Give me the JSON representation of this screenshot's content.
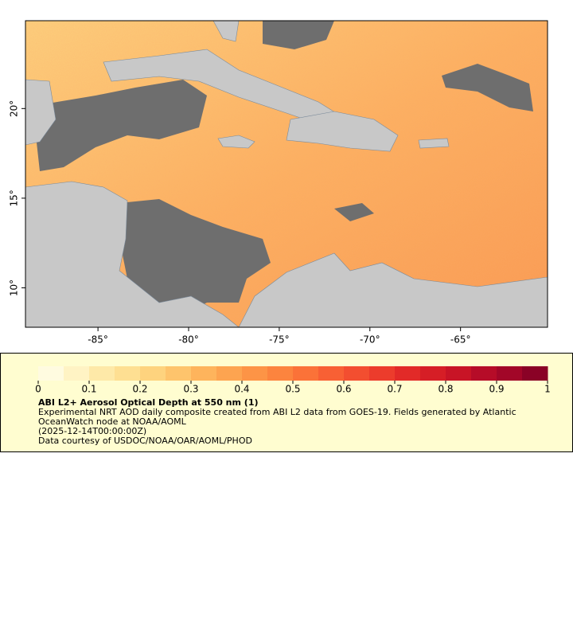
{
  "map": {
    "xlim": [
      -89,
      -60.2
    ],
    "ylim": [
      7.8,
      24.9
    ],
    "xticks": [
      {
        "value": -85,
        "label": "-85°"
      },
      {
        "value": -80,
        "label": "-80°"
      },
      {
        "value": -75,
        "label": "-75°"
      },
      {
        "value": -70,
        "label": "-70°"
      },
      {
        "value": -65,
        "label": "-65°"
      }
    ],
    "yticks": [
      {
        "value": 10,
        "label": "10°"
      },
      {
        "value": 15,
        "label": "15°"
      },
      {
        "value": 20,
        "label": "20°"
      }
    ]
  },
  "colorbar": {
    "range": [
      0,
      1
    ],
    "ticks": [
      0,
      0.1,
      0.2,
      0.3,
      0.4,
      0.5,
      0.6,
      0.7,
      0.8,
      0.9,
      1
    ],
    "colors": [
      "#fffbe0",
      "#fff3c4",
      "#fee9a8",
      "#fedf92",
      "#fed37e",
      "#fec46c",
      "#feb45c",
      "#fda450",
      "#fd9446",
      "#fc843e",
      "#fb7238",
      "#f86034",
      "#f34e30",
      "#ec3c2c",
      "#e22a28",
      "#d61e26",
      "#c81426",
      "#b60c28",
      "#a20628",
      "#8a0226"
    ],
    "title": "ABI L2+ Aerosol Optical Depth at 550 nm (1)",
    "description": "Experimental NRT AOD daily composite created from ABI L2 data from GOES-19. Fields generated by Atlantic OceanWatch node at NOAA/AOML",
    "time": "(2025-12-14T00:00:00Z)",
    "credit": "Data courtesy of USDOC/NOAA/OAR/AOML/PHOD"
  }
}
